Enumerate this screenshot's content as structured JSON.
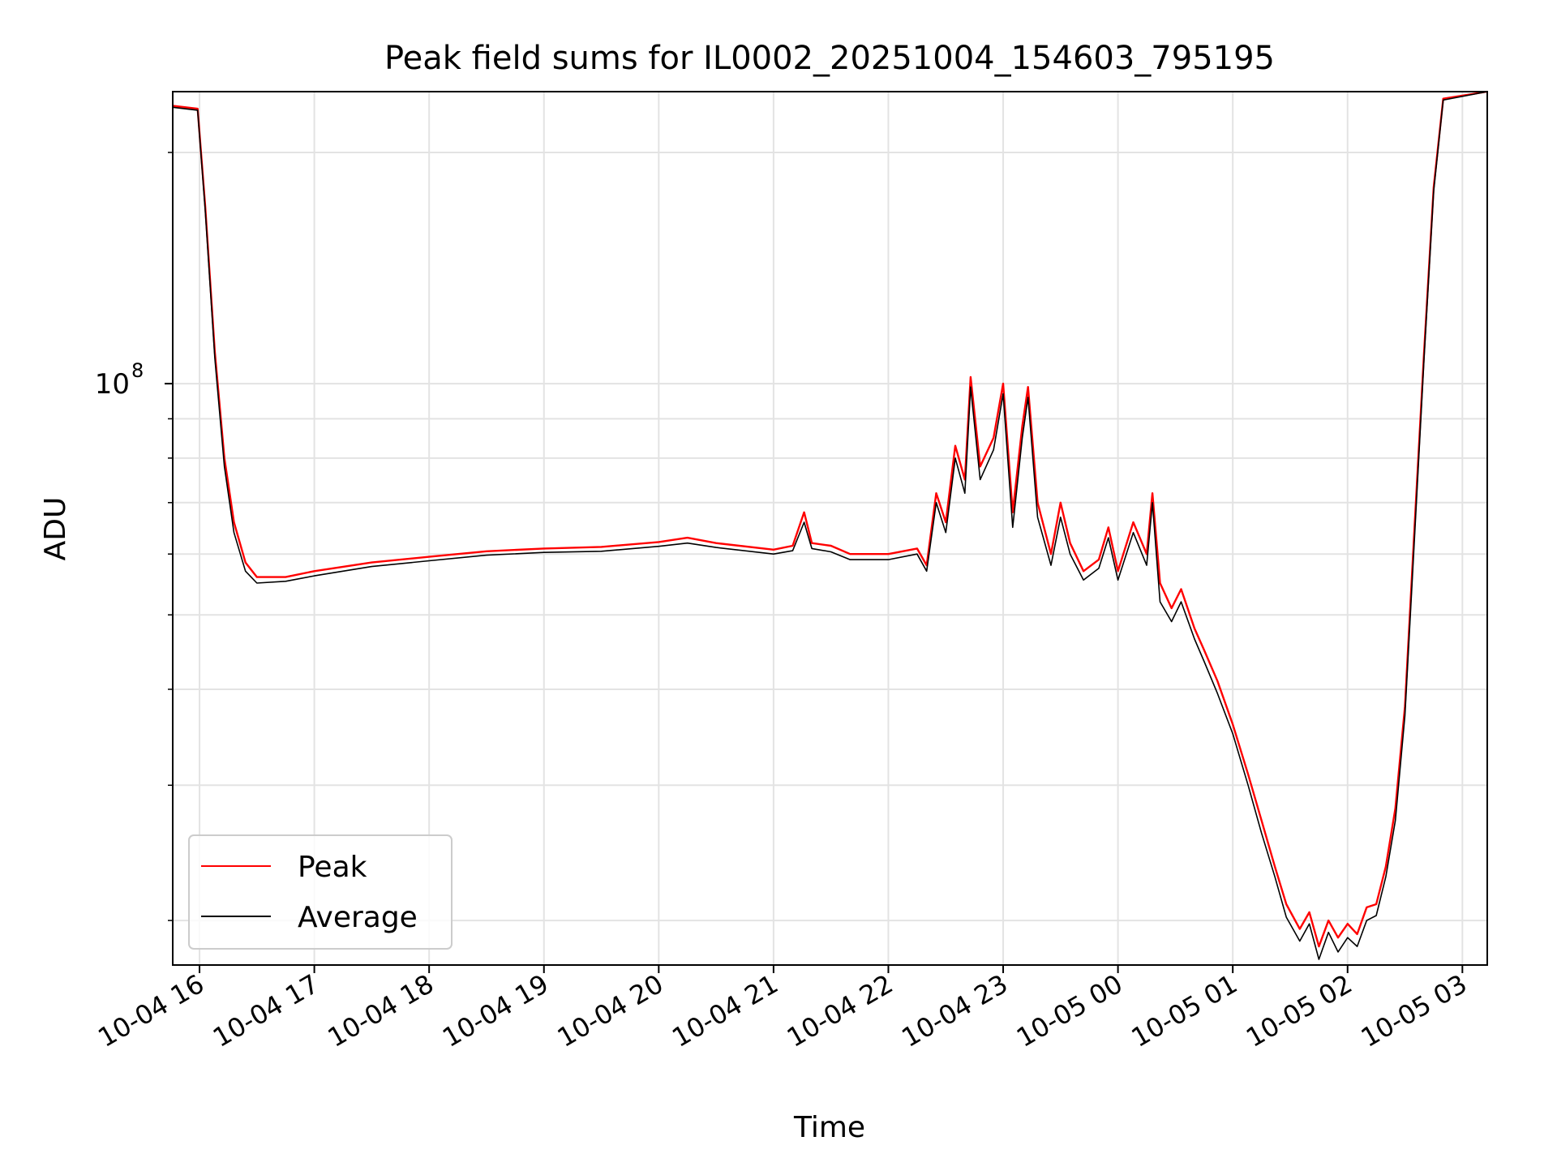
{
  "chart_data": {
    "type": "line",
    "title": "Peak field sums for IL0002_20251004_154603_795195",
    "xlabel": "Time",
    "ylabel": "ADU",
    "yscale": "log",
    "ylim": [
      17500000,
      240000000
    ],
    "y_major_tick_labels": [
      {
        "value": 100000000,
        "label": "10",
        "exp": "8"
      }
    ],
    "y_minor_ticks": [
      20000000,
      30000000,
      40000000,
      50000000,
      60000000,
      70000000,
      80000000,
      90000000,
      200000000
    ],
    "xlim": [
      "2025-10-04 15:46",
      "2025-10-05 03:13"
    ],
    "x_tick_labels": [
      {
        "t": "2025-10-04 16:00",
        "label": "10-04 16"
      },
      {
        "t": "2025-10-04 17:00",
        "label": "10-04 17"
      },
      {
        "t": "2025-10-04 18:00",
        "label": "10-04 18"
      },
      {
        "t": "2025-10-04 19:00",
        "label": "10-04 19"
      },
      {
        "t": "2025-10-04 20:00",
        "label": "10-04 20"
      },
      {
        "t": "2025-10-04 21:00",
        "label": "10-04 21"
      },
      {
        "t": "2025-10-04 22:00",
        "label": "10-04 22"
      },
      {
        "t": "2025-10-04 23:00",
        "label": "10-04 23"
      },
      {
        "t": "2025-10-05 00:00",
        "label": "10-05 00"
      },
      {
        "t": "2025-10-05 01:00",
        "label": "10-05 01"
      },
      {
        "t": "2025-10-05 02:00",
        "label": "10-05 02"
      },
      {
        "t": "2025-10-05 03:00",
        "label": "10-05 03"
      }
    ],
    "grid": true,
    "legend": {
      "position": "lower-left"
    },
    "series": [
      {
        "name": "Peak",
        "color": "#ff0000",
        "points": [
          [
            "2025-10-04 15:46",
            230000000
          ],
          [
            "2025-10-04 15:59",
            228000000
          ],
          [
            "2025-10-04 16:03",
            170000000
          ],
          [
            "2025-10-04 16:08",
            110000000
          ],
          [
            "2025-10-04 16:13",
            80000000
          ],
          [
            "2025-10-04 16:18",
            66000000
          ],
          [
            "2025-10-04 16:24",
            58500000
          ],
          [
            "2025-10-04 16:30",
            56000000
          ],
          [
            "2025-10-04 16:45",
            56000000
          ],
          [
            "2025-10-04 17:00",
            57000000
          ],
          [
            "2025-10-04 17:30",
            58500000
          ],
          [
            "2025-10-04 18:00",
            59500000
          ],
          [
            "2025-10-04 18:30",
            60500000
          ],
          [
            "2025-10-04 19:00",
            61000000
          ],
          [
            "2025-10-04 19:30",
            61300000
          ],
          [
            "2025-10-04 20:00",
            62200000
          ],
          [
            "2025-10-04 20:15",
            63000000
          ],
          [
            "2025-10-04 20:30",
            62000000
          ],
          [
            "2025-10-04 21:00",
            60800000
          ],
          [
            "2025-10-04 21:10",
            61500000
          ],
          [
            "2025-10-04 21:16",
            68000000
          ],
          [
            "2025-10-04 21:20",
            62000000
          ],
          [
            "2025-10-04 21:30",
            61500000
          ],
          [
            "2025-10-04 21:40",
            60000000
          ],
          [
            "2025-10-04 22:00",
            60000000
          ],
          [
            "2025-10-04 22:15",
            61000000
          ],
          [
            "2025-10-04 22:20",
            58000000
          ],
          [
            "2025-10-04 22:25",
            72000000
          ],
          [
            "2025-10-04 22:30",
            66000000
          ],
          [
            "2025-10-04 22:35",
            83000000
          ],
          [
            "2025-10-04 22:40",
            75000000
          ],
          [
            "2025-10-04 22:43",
            102000000
          ],
          [
            "2025-10-04 22:48",
            78000000
          ],
          [
            "2025-10-04 22:55",
            85000000
          ],
          [
            "2025-10-04 23:00",
            100000000
          ],
          [
            "2025-10-04 23:05",
            68000000
          ],
          [
            "2025-10-04 23:10",
            88000000
          ],
          [
            "2025-10-04 23:13",
            99000000
          ],
          [
            "2025-10-04 23:18",
            70000000
          ],
          [
            "2025-10-04 23:25",
            60000000
          ],
          [
            "2025-10-04 23:30",
            70000000
          ],
          [
            "2025-10-04 23:35",
            62000000
          ],
          [
            "2025-10-04 23:42",
            57000000
          ],
          [
            "2025-10-04 23:50",
            59000000
          ],
          [
            "2025-10-04 23:55",
            65000000
          ],
          [
            "2025-10-05 00:00",
            57000000
          ],
          [
            "2025-10-05 00:08",
            66000000
          ],
          [
            "2025-10-05 00:15",
            60000000
          ],
          [
            "2025-10-05 00:18",
            72000000
          ],
          [
            "2025-10-05 00:22",
            55000000
          ],
          [
            "2025-10-05 00:28",
            51000000
          ],
          [
            "2025-10-05 00:33",
            54000000
          ],
          [
            "2025-10-05 00:40",
            48000000
          ],
          [
            "2025-10-05 00:45",
            45000000
          ],
          [
            "2025-10-05 00:52",
            41000000
          ],
          [
            "2025-10-05 01:00",
            36000000
          ],
          [
            "2025-10-05 01:08",
            31000000
          ],
          [
            "2025-10-05 01:15",
            27000000
          ],
          [
            "2025-10-05 01:22",
            23500000
          ],
          [
            "2025-10-05 01:28",
            21000000
          ],
          [
            "2025-10-05 01:35",
            19500000
          ],
          [
            "2025-10-05 01:40",
            20500000
          ],
          [
            "2025-10-05 01:45",
            18500000
          ],
          [
            "2025-10-05 01:50",
            20000000
          ],
          [
            "2025-10-05 01:55",
            19000000
          ],
          [
            "2025-10-05 02:00",
            19800000
          ],
          [
            "2025-10-05 02:05",
            19200000
          ],
          [
            "2025-10-05 02:10",
            20800000
          ],
          [
            "2025-10-05 02:15",
            21000000
          ],
          [
            "2025-10-05 02:20",
            23500000
          ],
          [
            "2025-10-05 02:25",
            28000000
          ],
          [
            "2025-10-05 02:30",
            38000000
          ],
          [
            "2025-10-05 02:35",
            65000000
          ],
          [
            "2025-10-05 02:40",
            110000000
          ],
          [
            "2025-10-05 02:45",
            180000000
          ],
          [
            "2025-10-05 02:50",
            235000000
          ],
          [
            "2025-10-05 03:13",
            240000000
          ]
        ]
      },
      {
        "name": "Average",
        "color": "#000000",
        "points": [
          [
            "2025-10-04 15:46",
            229000000
          ],
          [
            "2025-10-04 15:59",
            227000000
          ],
          [
            "2025-10-04 16:03",
            168000000
          ],
          [
            "2025-10-04 16:08",
            108000000
          ],
          [
            "2025-10-04 16:13",
            78000000
          ],
          [
            "2025-10-04 16:18",
            64000000
          ],
          [
            "2025-10-04 16:24",
            57000000
          ],
          [
            "2025-10-04 16:30",
            55000000
          ],
          [
            "2025-10-04 16:45",
            55300000
          ],
          [
            "2025-10-04 17:00",
            56200000
          ],
          [
            "2025-10-04 17:30",
            57800000
          ],
          [
            "2025-10-04 18:00",
            58800000
          ],
          [
            "2025-10-04 18:30",
            59800000
          ],
          [
            "2025-10-04 19:00",
            60300000
          ],
          [
            "2025-10-04 19:30",
            60500000
          ],
          [
            "2025-10-04 20:00",
            61400000
          ],
          [
            "2025-10-04 20:15",
            62000000
          ],
          [
            "2025-10-04 20:30",
            61200000
          ],
          [
            "2025-10-04 21:00",
            60000000
          ],
          [
            "2025-10-04 21:10",
            60600000
          ],
          [
            "2025-10-04 21:16",
            66000000
          ],
          [
            "2025-10-04 21:20",
            61000000
          ],
          [
            "2025-10-04 21:30",
            60400000
          ],
          [
            "2025-10-04 21:40",
            59000000
          ],
          [
            "2025-10-04 22:00",
            59000000
          ],
          [
            "2025-10-04 22:15",
            60000000
          ],
          [
            "2025-10-04 22:20",
            57000000
          ],
          [
            "2025-10-04 22:25",
            70000000
          ],
          [
            "2025-10-04 22:30",
            64000000
          ],
          [
            "2025-10-04 22:35",
            80000000
          ],
          [
            "2025-10-04 22:40",
            72000000
          ],
          [
            "2025-10-04 22:43",
            99000000
          ],
          [
            "2025-10-04 22:48",
            75000000
          ],
          [
            "2025-10-04 22:55",
            82000000
          ],
          [
            "2025-10-04 23:00",
            97000000
          ],
          [
            "2025-10-04 23:05",
            65000000
          ],
          [
            "2025-10-04 23:10",
            85000000
          ],
          [
            "2025-10-04 23:13",
            96000000
          ],
          [
            "2025-10-04 23:18",
            67000000
          ],
          [
            "2025-10-04 23:25",
            58000000
          ],
          [
            "2025-10-04 23:30",
            67000000
          ],
          [
            "2025-10-04 23:35",
            60000000
          ],
          [
            "2025-10-04 23:42",
            55500000
          ],
          [
            "2025-10-04 23:50",
            57500000
          ],
          [
            "2025-10-04 23:55",
            63000000
          ],
          [
            "2025-10-05 00:00",
            55500000
          ],
          [
            "2025-10-05 00:08",
            64000000
          ],
          [
            "2025-10-05 00:15",
            58000000
          ],
          [
            "2025-10-05 00:18",
            70000000
          ],
          [
            "2025-10-05 00:22",
            52000000
          ],
          [
            "2025-10-05 00:28",
            49000000
          ],
          [
            "2025-10-05 00:33",
            52000000
          ],
          [
            "2025-10-05 00:40",
            46500000
          ],
          [
            "2025-10-05 00:45",
            43500000
          ],
          [
            "2025-10-05 00:52",
            39500000
          ],
          [
            "2025-10-05 01:00",
            35000000
          ],
          [
            "2025-10-05 01:08",
            30000000
          ],
          [
            "2025-10-05 01:15",
            26000000
          ],
          [
            "2025-10-05 01:22",
            22800000
          ],
          [
            "2025-10-05 01:28",
            20200000
          ],
          [
            "2025-10-05 01:35",
            18800000
          ],
          [
            "2025-10-05 01:40",
            19800000
          ],
          [
            "2025-10-05 01:45",
            17800000
          ],
          [
            "2025-10-05 01:50",
            19300000
          ],
          [
            "2025-10-05 01:55",
            18200000
          ],
          [
            "2025-10-05 02:00",
            19000000
          ],
          [
            "2025-10-05 02:05",
            18500000
          ],
          [
            "2025-10-05 02:10",
            20000000
          ],
          [
            "2025-10-05 02:15",
            20300000
          ],
          [
            "2025-10-05 02:20",
            22800000
          ],
          [
            "2025-10-05 02:25",
            27000000
          ],
          [
            "2025-10-05 02:30",
            37000000
          ],
          [
            "2025-10-05 02:35",
            63000000
          ],
          [
            "2025-10-05 02:40",
            108000000
          ],
          [
            "2025-10-05 02:45",
            178000000
          ],
          [
            "2025-10-05 02:50",
            234000000
          ],
          [
            "2025-10-05 03:13",
            240000000
          ]
        ]
      }
    ]
  }
}
